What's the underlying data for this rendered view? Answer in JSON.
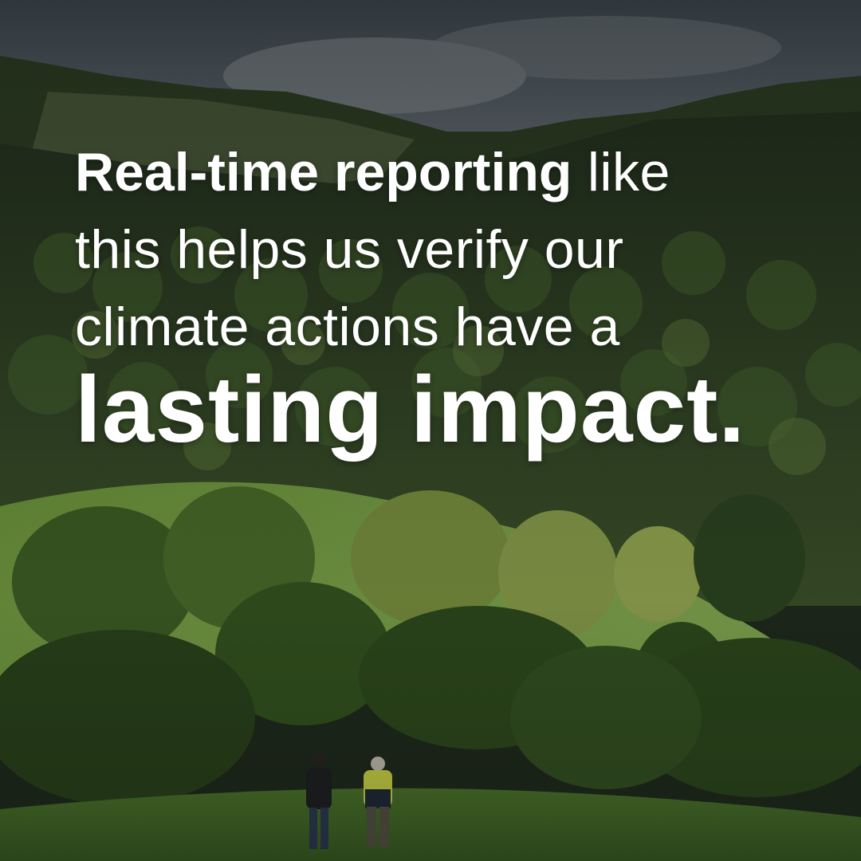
{
  "headline": {
    "line1_bold": "Real-time reporting",
    "line1_rest": " like",
    "line2": "this helps us verify our",
    "line3": "climate actions have a",
    "line4": "lasting impact."
  },
  "photo": {
    "subject": "forested hills with green pasture and two people walking",
    "colors": {
      "sky": "#5d6670",
      "forest_dark": "#2b3a22",
      "forest_mid": "#4a6433",
      "pasture": "#7fa84a",
      "foliage_bright": "#9bb55a"
    }
  }
}
